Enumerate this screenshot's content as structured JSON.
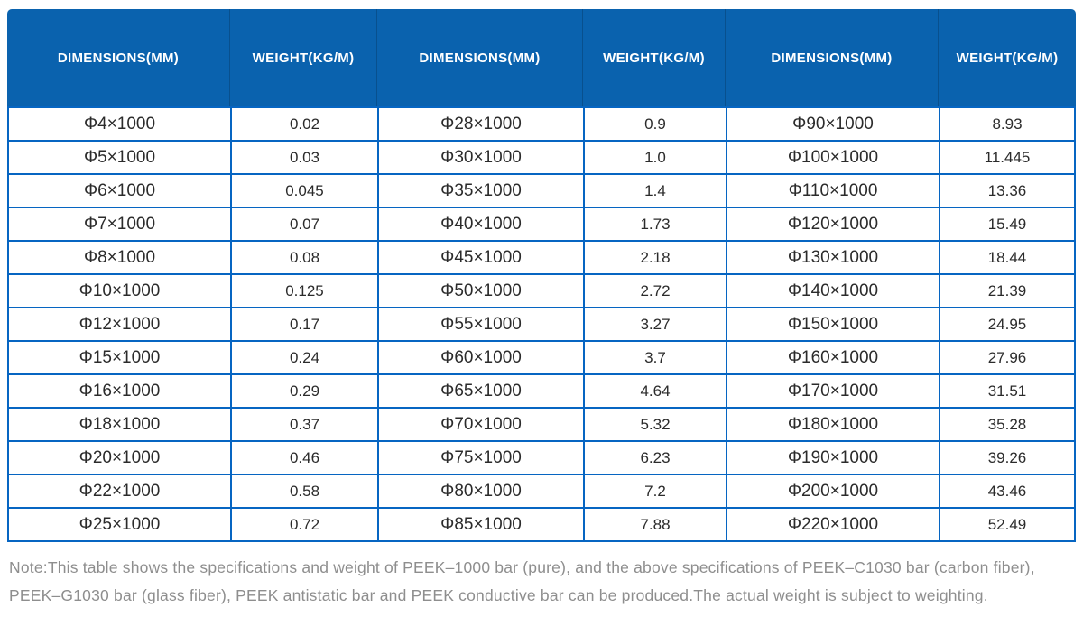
{
  "colors": {
    "header_bg": "#0a62ae",
    "grid_border": "#0665c2",
    "cell_text": "#2b2b2b",
    "note_text": "#8e8e8e"
  },
  "table": {
    "header_labels": [
      "DIMENSIONS(MM)",
      "WEIGHT(KG/M)",
      "DIMENSIONS(MM)",
      "WEIGHT(KG/M)",
      "DIMENSIONS(MM)",
      "WEIGHT(KG/M)"
    ],
    "rows": [
      [
        "Φ4×1000",
        "0.02",
        "Φ28×1000",
        "0.9",
        "Φ90×1000",
        "8.93"
      ],
      [
        "Φ5×1000",
        "0.03",
        "Φ30×1000",
        "1.0",
        "Φ100×1000",
        "11.445"
      ],
      [
        "Φ6×1000",
        "0.045",
        "Φ35×1000",
        "1.4",
        "Φ110×1000",
        "13.36"
      ],
      [
        "Φ7×1000",
        "0.07",
        "Φ40×1000",
        "1.73",
        "Φ120×1000",
        "15.49"
      ],
      [
        "Φ8×1000",
        "0.08",
        "Φ45×1000",
        "2.18",
        "Φ130×1000",
        "18.44"
      ],
      [
        "Φ10×1000",
        "0.125",
        "Φ50×1000",
        "2.72",
        "Φ140×1000",
        "21.39"
      ],
      [
        "Φ12×1000",
        "0.17",
        "Φ55×1000",
        "3.27",
        "Φ150×1000",
        "24.95"
      ],
      [
        "Φ15×1000",
        "0.24",
        "Φ60×1000",
        "3.7",
        "Φ160×1000",
        "27.96"
      ],
      [
        "Φ16×1000",
        "0.29",
        "Φ65×1000",
        "4.64",
        "Φ170×1000",
        "31.51"
      ],
      [
        "Φ18×1000",
        "0.37",
        "Φ70×1000",
        "5.32",
        "Φ180×1000",
        "35.28"
      ],
      [
        "Φ20×1000",
        "0.46",
        "Φ75×1000",
        "6.23",
        "Φ190×1000",
        "39.26"
      ],
      [
        "Φ22×1000",
        "0.58",
        "Φ80×1000",
        "7.2",
        "Φ200×1000",
        "43.46"
      ],
      [
        "Φ25×1000",
        "0.72",
        "Φ85×1000",
        "7.88",
        "Φ220×1000",
        "52.49"
      ]
    ]
  },
  "note": {
    "line1": "Note:This table shows the specifications and weight of PEEK–1000 bar (pure), and the above specifications of PEEK–C1030 bar (carbon fiber),",
    "line2": "PEEK–G1030 bar (glass fiber), PEEK antistatic bar and PEEK conductive bar can be produced.The actual weight is subject to weighting."
  }
}
